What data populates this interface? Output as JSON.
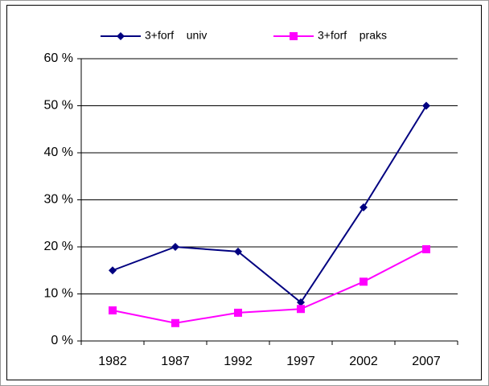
{
  "chart_data": {
    "type": "line",
    "categories": [
      "1982",
      "1987",
      "1992",
      "1997",
      "2002",
      "2007"
    ],
    "series": [
      {
        "name": "3+forf    univ",
        "color": "#000080",
        "marker": "diamond",
        "values": [
          15,
          20,
          19,
          8.2,
          28.4,
          50
        ]
      },
      {
        "name": "3+forf    praks",
        "color": "#ff00ff",
        "marker": "square",
        "values": [
          6.5,
          3.8,
          6,
          6.8,
          12.6,
          19.5
        ]
      }
    ],
    "ylim": [
      0,
      60
    ],
    "yticks": [
      {
        "value": 0,
        "label": "0 %"
      },
      {
        "value": 10,
        "label": "10 %"
      },
      {
        "value": 20,
        "label": "20 %"
      },
      {
        "value": 30,
        "label": "30 %"
      },
      {
        "value": 40,
        "label": "40 %"
      },
      {
        "value": 50,
        "label": "50 %"
      },
      {
        "value": 60,
        "label": "60 %"
      }
    ],
    "grid": true,
    "legend": "top"
  }
}
